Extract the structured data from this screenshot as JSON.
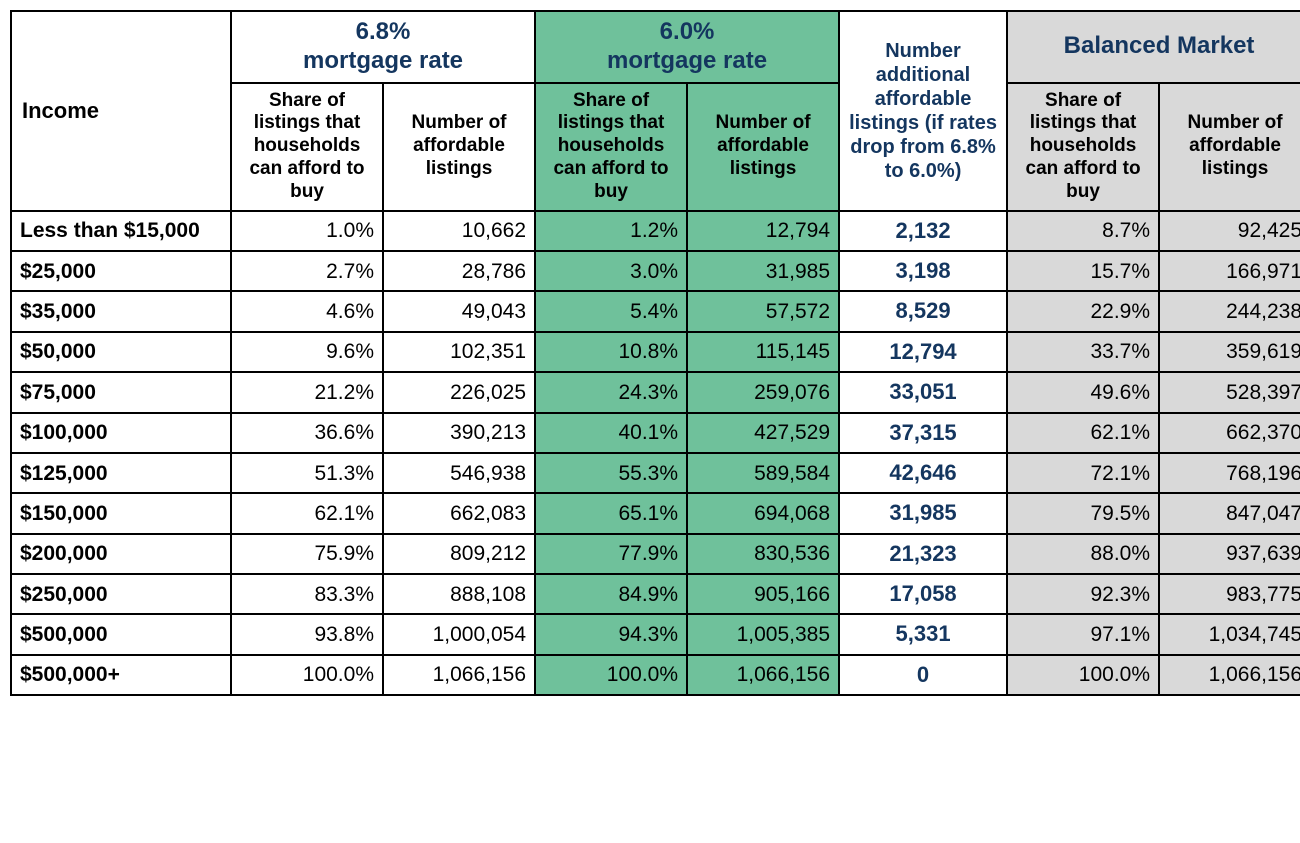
{
  "colors": {
    "header_text": "#14365f",
    "green_bg": "#6fc19b",
    "gray_bg": "#d9d9d9",
    "border": "#000000",
    "body_text": "#000000",
    "page_bg": "#ffffff"
  },
  "table": {
    "headers": {
      "income": "Income",
      "rate68": "6.8%\nmortgage rate",
      "rate60": "6.0%\nmortgage rate",
      "additional": "Number additional affordable listings (if rates drop from 6.8% to 6.0%)",
      "balanced": "Balanced Market",
      "share": "Share of listings that households can afford to buy",
      "number": "Number of affordable listings"
    },
    "rows": [
      {
        "income": "Less than $15,000",
        "s68": "1.0%",
        "n68": "10,662",
        "s60": "1.2%",
        "n60": "12,794",
        "add": "2,132",
        "sb": "8.7%",
        "nb": "92,425"
      },
      {
        "income": "$25,000",
        "s68": "2.7%",
        "n68": "28,786",
        "s60": "3.0%",
        "n60": "31,985",
        "add": "3,198",
        "sb": "15.7%",
        "nb": "166,971"
      },
      {
        "income": "$35,000",
        "s68": "4.6%",
        "n68": "49,043",
        "s60": "5.4%",
        "n60": "57,572",
        "add": "8,529",
        "sb": "22.9%",
        "nb": "244,238"
      },
      {
        "income": "$50,000",
        "s68": "9.6%",
        "n68": "102,351",
        "s60": "10.8%",
        "n60": "115,145",
        "add": "12,794",
        "sb": "33.7%",
        "nb": "359,619"
      },
      {
        "income": "$75,000",
        "s68": "21.2%",
        "n68": "226,025",
        "s60": "24.3%",
        "n60": "259,076",
        "add": "33,051",
        "sb": "49.6%",
        "nb": "528,397"
      },
      {
        "income": "$100,000",
        "s68": "36.6%",
        "n68": "390,213",
        "s60": "40.1%",
        "n60": "427,529",
        "add": "37,315",
        "sb": "62.1%",
        "nb": "662,370"
      },
      {
        "income": "$125,000",
        "s68": "51.3%",
        "n68": "546,938",
        "s60": "55.3%",
        "n60": "589,584",
        "add": "42,646",
        "sb": "72.1%",
        "nb": "768,196"
      },
      {
        "income": "$150,000",
        "s68": "62.1%",
        "n68": "662,083",
        "s60": "65.1%",
        "n60": "694,068",
        "add": "31,985",
        "sb": "79.5%",
        "nb": "847,047"
      },
      {
        "income": "$200,000",
        "s68": "75.9%",
        "n68": "809,212",
        "s60": "77.9%",
        "n60": "830,536",
        "add": "21,323",
        "sb": "88.0%",
        "nb": "937,639"
      },
      {
        "income": "$250,000",
        "s68": "83.3%",
        "n68": "888,108",
        "s60": "84.9%",
        "n60": "905,166",
        "add": "17,058",
        "sb": "92.3%",
        "nb": "983,775"
      },
      {
        "income": "$500,000",
        "s68": "93.8%",
        "n68": "1,000,054",
        "s60": "94.3%",
        "n60": "1,005,385",
        "add": "5,331",
        "sb": "97.1%",
        "nb": "1,034,745"
      },
      {
        "income": "$500,000+",
        "s68": "100.0%",
        "n68": "1,066,156",
        "s60": "100.0%",
        "n60": "1,066,156",
        "add": "0",
        "sb": "100.0%",
        "nb": "1,066,156"
      }
    ]
  }
}
